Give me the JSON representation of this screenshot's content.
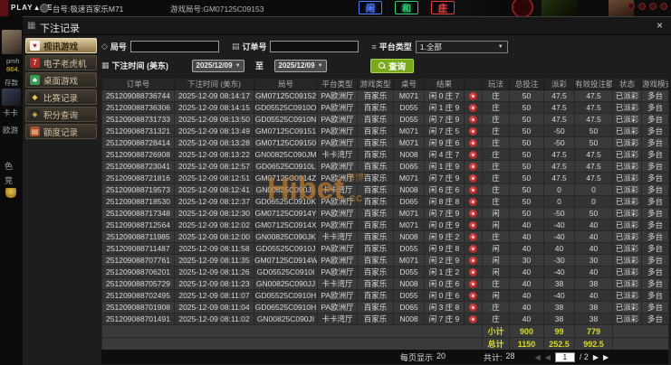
{
  "top_bar": {
    "logo": "PLAY▲CE",
    "table_label": "台号:极速百家乐M71",
    "round_label": "游戏局号:GM07125C09153",
    "neon_signs": [
      {
        "label": "闲",
        "color": "#4f7dff"
      },
      {
        "label": "和",
        "color": "#2ecc71"
      },
      {
        "label": "庄",
        "color": "#e8413c"
      }
    ]
  },
  "lobby": {
    "username": "pmh",
    "balance": "864.",
    "deposit_label": "存款",
    "fragments": [
      "卡卡",
      "欧游",
      "色",
      "竞"
    ]
  },
  "modal": {
    "title": "下注记录",
    "close_label": "×",
    "sidebar": {
      "items": [
        {
          "id": "video-games",
          "label": "视讯游戏",
          "icon": "cards-icon",
          "glyph": "♥",
          "icon_bg": "#f5f5f5",
          "icon_fg": "#c0262b",
          "active": true
        },
        {
          "id": "slots",
          "label": "电子老虎机",
          "icon": "slot-icon",
          "glyph": "7",
          "icon_bg": "#b02a26",
          "icon_fg": "#ffffff",
          "active": false
        },
        {
          "id": "table-games",
          "label": "桌面游戏",
          "icon": "club-icon",
          "glyph": "♣",
          "icon_bg": "#2f9e4f",
          "icon_fg": "#ffffff",
          "active": false
        },
        {
          "id": "match-record",
          "label": "比赛记录",
          "icon": "diamond-icon",
          "glyph": "◆",
          "icon_bg": "#2c2822",
          "icon_fg": "#e8c35a",
          "active": false
        },
        {
          "id": "points-query",
          "label": "积分查询",
          "icon": "gem-icon",
          "glyph": "◈",
          "icon_bg": "#2c2822",
          "icon_fg": "#e8c35a",
          "active": false
        },
        {
          "id": "quota-record",
          "label": "额度记录",
          "icon": "ledger-icon",
          "glyph": "▤",
          "icon_bg": "#a8502a",
          "icon_fg": "#ffe0b0",
          "active": false
        }
      ]
    },
    "filters": {
      "round_label": "局号",
      "order_label": "订单号",
      "platform_label": "平台类型",
      "platform_value": "1.全部",
      "time_label": "下注时间 (美东)",
      "date_from": "2025/12/09",
      "to_label": "至",
      "date_to": "2025/12/09",
      "search_label": "查询"
    },
    "table": {
      "headers": [
        "订单号",
        "下注时间 (美东)",
        "局号",
        "平台类型",
        "游戏类型",
        "桌号",
        "结果",
        "",
        "玩法",
        "总投注",
        "派彩",
        "有效投注额",
        "状态",
        "游戏模式"
      ],
      "rows": [
        {
          "order": "251209088736744",
          "time": "2025-12-09 08:14:17",
          "round": "GM07125C09152",
          "platform": "PA欧洲厅",
          "game": "百家乐",
          "table": "M071",
          "result": "闲 0 庄 7",
          "play": "庄",
          "bet": "50",
          "payout": "47.5",
          "payout_type": "win",
          "valid": "47.5",
          "status": "已派彩",
          "mode": "多台"
        },
        {
          "order": "251209088736306",
          "time": "2025-12-09 08:14:15",
          "round": "GD05525C0910O",
          "platform": "PA欧洲厅",
          "game": "百家乐",
          "table": "D055",
          "result": "闲 1 庄 9",
          "play": "庄",
          "bet": "50",
          "payout": "47.5",
          "payout_type": "win",
          "valid": "47.5",
          "status": "已派彩",
          "mode": "多台"
        },
        {
          "order": "251209088731733",
          "time": "2025-12-09 08:13:50",
          "round": "GD05525C0910N",
          "platform": "PA欧洲厅",
          "game": "百家乐",
          "table": "D055",
          "result": "闲 7 庄 9",
          "play": "庄",
          "bet": "50",
          "payout": "47.5",
          "payout_type": "win",
          "valid": "47.5",
          "status": "已派彩",
          "mode": "多台"
        },
        {
          "order": "251209088731321",
          "time": "2025-12-09 08:13:49",
          "round": "GM07125C09151",
          "platform": "PA欧洲厅",
          "game": "百家乐",
          "table": "M071",
          "result": "闲 7 庄 5",
          "play": "庄",
          "bet": "50",
          "payout": "-50",
          "payout_type": "loss",
          "valid": "50",
          "status": "已派彩",
          "mode": "多台"
        },
        {
          "order": "251209088728414",
          "time": "2025-12-09 08:13:28",
          "round": "GM07125C09150",
          "platform": "PA欧洲厅",
          "game": "百家乐",
          "table": "M071",
          "result": "闲 9 庄 6",
          "play": "庄",
          "bet": "50",
          "payout": "-50",
          "payout_type": "loss",
          "valid": "50",
          "status": "已派彩",
          "mode": "多台"
        },
        {
          "order": "251209088726908",
          "time": "2025-12-09 08:13:22",
          "round": "GN00825C090JM",
          "platform": "卡卡湾厅",
          "game": "百家乐",
          "table": "N008",
          "result": "闲 4 庄 7",
          "play": "庄",
          "bet": "50",
          "payout": "47.5",
          "payout_type": "win",
          "valid": "47.5",
          "status": "已派彩",
          "mode": "多台"
        },
        {
          "order": "251209088723041",
          "time": "2025-12-09 08:12:57",
          "round": "GD06525C0910L",
          "platform": "PA欧洲厅",
          "game": "百家乐",
          "table": "D065",
          "result": "闲 1 庄 9",
          "play": "庄",
          "bet": "50",
          "payout": "47.5",
          "payout_type": "win",
          "valid": "47.5",
          "status": "已派彩",
          "mode": "多台"
        },
        {
          "order": "251209088721816",
          "time": "2025-12-09 08:12:51",
          "round": "GM07125C0914Z",
          "platform": "PA欧洲厅",
          "game": "百家乐",
          "table": "M071",
          "result": "闲 7 庄 9",
          "play": "庄",
          "bet": "50",
          "payout": "47.5",
          "payout_type": "win",
          "valid": "47.5",
          "status": "已派彩",
          "mode": "多台"
        },
        {
          "order": "251209088719573",
          "time": "2025-12-09 08:12:41",
          "round": "GN00825C090JL",
          "platform": "卡卡湾厅",
          "game": "百家乐",
          "table": "N008",
          "result": "闲 6 庄 6",
          "play": "庄",
          "bet": "50",
          "payout": "0",
          "payout_type": "zero",
          "valid": "0",
          "status": "已派彩",
          "mode": "多台"
        },
        {
          "order": "251209088718530",
          "time": "2025-12-09 08:12:37",
          "round": "GD06525C0910K",
          "platform": "PA欧洲厅",
          "game": "百家乐",
          "table": "D065",
          "result": "闲 8 庄 8",
          "play": "庄",
          "bet": "50",
          "payout": "0",
          "payout_type": "zero",
          "valid": "0",
          "status": "已派彩",
          "mode": "多台"
        },
        {
          "order": "251209088717348",
          "time": "2025-12-09 08:12:30",
          "round": "GM07125C0914Y",
          "platform": "PA欧洲厅",
          "game": "百家乐",
          "table": "M071",
          "result": "闲 7 庄 9",
          "play": "闲",
          "bet": "50",
          "payout": "-50",
          "payout_type": "loss",
          "valid": "50",
          "status": "已派彩",
          "mode": "多台"
        },
        {
          "order": "251209088712564",
          "time": "2025-12-09 08:12:02",
          "round": "GM07125C0914X",
          "platform": "PA欧洲厅",
          "game": "百家乐",
          "table": "M071",
          "result": "闲 0 庄 9",
          "play": "闲",
          "bet": "40",
          "payout": "-40",
          "payout_type": "loss",
          "valid": "40",
          "status": "已派彩",
          "mode": "多台"
        },
        {
          "order": "251209088711985",
          "time": "2025-12-09 08:12:00",
          "round": "GN00825C090JK",
          "platform": "卡卡湾厅",
          "game": "百家乐",
          "table": "N008",
          "result": "闲 9 庄 2",
          "play": "庄",
          "bet": "40",
          "payout": "-40",
          "payout_type": "loss",
          "valid": "40",
          "status": "已派彩",
          "mode": "多台"
        },
        {
          "order": "251209088711487",
          "time": "2025-12-09 08:11:58",
          "round": "GD05525C0910J",
          "platform": "PA欧洲厅",
          "game": "百家乐",
          "table": "D055",
          "result": "闲 9 庄 8",
          "play": "闲",
          "bet": "40",
          "payout": "40",
          "payout_type": "win",
          "valid": "40",
          "status": "已派彩",
          "mode": "多台"
        },
        {
          "order": "251209088707761",
          "time": "2025-12-09 08:11:35",
          "round": "GM07125C0914W",
          "platform": "PA欧洲厅",
          "game": "百家乐",
          "table": "M071",
          "result": "闲 2 庄 9",
          "play": "闲",
          "bet": "30",
          "payout": "-30",
          "payout_type": "loss",
          "valid": "30",
          "status": "已派彩",
          "mode": "多台"
        },
        {
          "order": "251209088706201",
          "time": "2025-12-09 08:11:26",
          "round": "GD05525C0910I",
          "platform": "PA欧洲厅",
          "game": "百家乐",
          "table": "D055",
          "result": "闲 1 庄 2",
          "play": "闲",
          "bet": "40",
          "payout": "-40",
          "payout_type": "loss",
          "valid": "40",
          "status": "已派彩",
          "mode": "多台"
        },
        {
          "order": "251209088705729",
          "time": "2025-12-09 08:11:23",
          "round": "GN00825C090JJ",
          "platform": "卡卡湾厅",
          "game": "百家乐",
          "table": "N008",
          "result": "闲 0 庄 6",
          "play": "庄",
          "bet": "40",
          "payout": "38",
          "payout_type": "win",
          "valid": "38",
          "status": "已派彩",
          "mode": "多台"
        },
        {
          "order": "251209088702495",
          "time": "2025-12-09 08:11:07",
          "round": "GD05525C0910H",
          "platform": "PA欧洲厅",
          "game": "百家乐",
          "table": "D055",
          "result": "闲 0 庄 6",
          "play": "闲",
          "bet": "40",
          "payout": "-40",
          "payout_type": "loss",
          "valid": "40",
          "status": "已派彩",
          "mode": "多台"
        },
        {
          "order": "251209088701908",
          "time": "2025-12-09 08:11:04",
          "round": "GD06525C0910H",
          "platform": "PA欧洲厅",
          "game": "百家乐",
          "table": "D065",
          "result": "闲 3 庄 8",
          "play": "庄",
          "bet": "40",
          "payout": "38",
          "payout_type": "win",
          "valid": "38",
          "status": "已派彩",
          "mode": "多台"
        },
        {
          "order": "251209088701491",
          "time": "2025-12-09 08:11:02",
          "round": "GN00825C090JI",
          "platform": "卡卡湾厅",
          "game": "百家乐",
          "table": "N008",
          "result": "闲 7 庄 9",
          "play": "庄",
          "bet": "40",
          "payout": "38",
          "payout_type": "win",
          "valid": "38",
          "status": "已派彩",
          "mode": "多台"
        }
      ],
      "subtotal": {
        "label": "小计",
        "bet": "900",
        "payout": "99",
        "valid": "779"
      },
      "total": {
        "label": "总计",
        "bet": "1150",
        "payout": "252.5",
        "valid": "992.5"
      }
    },
    "pagination": {
      "per_page_label": "每页显示",
      "per_page": "20",
      "total_label": "共计:",
      "total": "28",
      "page": "1",
      "of": "/ 2"
    }
  },
  "watermark": {
    "text": "Hibet",
    "cn": "海博",
    "suffix": ".cc"
  },
  "colors": {
    "payout_win": "#a83a3a",
    "payout_loss": "#8fd400",
    "status_paid": "#4be04b",
    "summary_yellow": "#d8d825",
    "search_button": "#7aa91c",
    "sidebar_active": "#dcca9f"
  }
}
